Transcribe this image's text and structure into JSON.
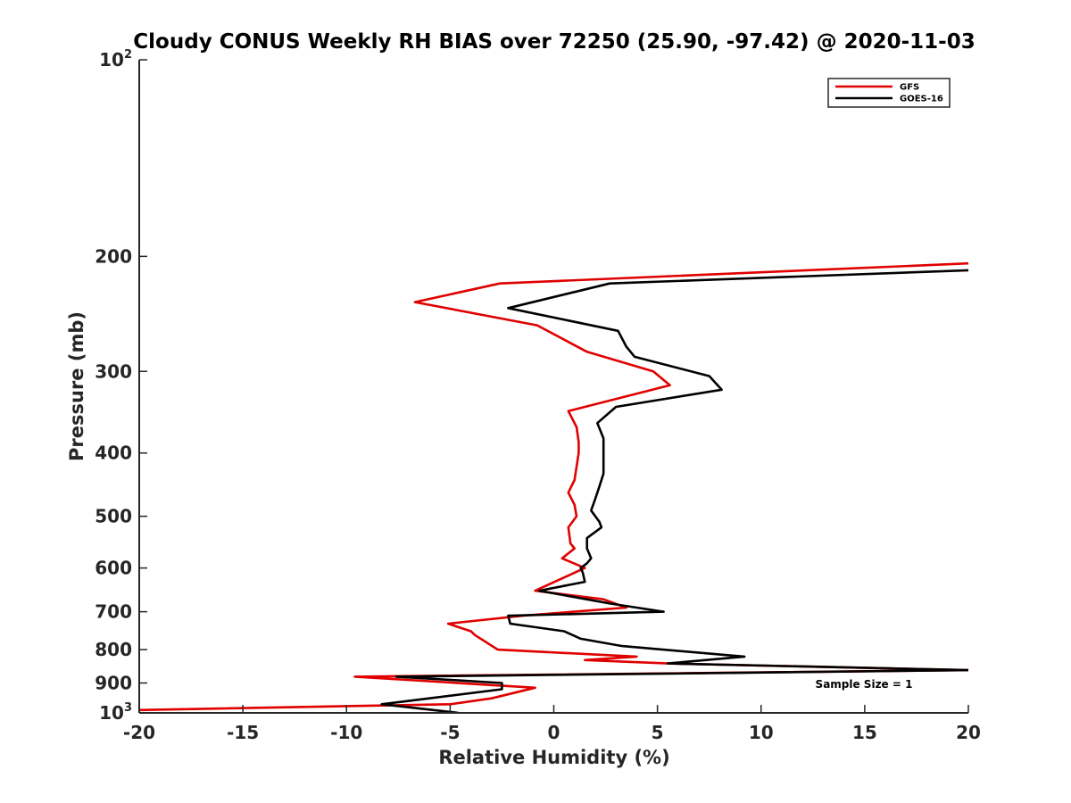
{
  "chart_data": {
    "type": "line",
    "title": "Cloudy CONUS Weekly RH BIAS over 72250 (25.90, -97.42) @ 2020-11-03",
    "xlabel": "Relative Humidity (%)",
    "ylabel": "Pressure (mb)",
    "xlim": [
      -20,
      20
    ],
    "ylim": [
      100,
      1000
    ],
    "y_scale": "log",
    "y_reversed": true,
    "x_ticks": [
      -20,
      -15,
      -10,
      -5,
      0,
      5,
      10,
      15,
      20
    ],
    "x_tick_labels": [
      "-20",
      "-15",
      "-10",
      "-5",
      "0",
      "5",
      "10",
      "15",
      "20"
    ],
    "y_ticks": [
      100,
      200,
      300,
      400,
      500,
      600,
      700,
      800,
      900,
      1000
    ],
    "y_tick_labels": [
      {
        "base": "10",
        "sup": "2"
      },
      {
        "base": "200",
        "sup": ""
      },
      {
        "base": "300",
        "sup": ""
      },
      {
        "base": "400",
        "sup": ""
      },
      {
        "base": "500",
        "sup": ""
      },
      {
        "base": "600",
        "sup": ""
      },
      {
        "base": "700",
        "sup": ""
      },
      {
        "base": "800",
        "sup": ""
      },
      {
        "base": "900",
        "sup": ""
      },
      {
        "base": "10",
        "sup": "3"
      }
    ],
    "grid": false,
    "legend_position": "top-right",
    "annotation": "Sample Size = 1",
    "series": [
      {
        "name": "GFS",
        "color": "#e00000",
        "x": [
          20,
          -2.6,
          -6.7,
          -0.8,
          1.6,
          4.8,
          5.6,
          0.7,
          1.1,
          1.2,
          1.2,
          1.1,
          1.0,
          0.7,
          1.0,
          1.1,
          0.7,
          0.8,
          1.0,
          0.4,
          1.5,
          -0.9,
          2.4,
          3.5,
          -1.5,
          -5.1,
          -4.0,
          -3.8,
          -2.7,
          4.0,
          1.5,
          5.5,
          20,
          -9.6,
          -0.9,
          -3.0,
          -5.0,
          -20
        ],
        "y": [
          205,
          220,
          235,
          255,
          280,
          300,
          315,
          345,
          365,
          385,
          400,
          420,
          440,
          460,
          480,
          500,
          520,
          550,
          560,
          580,
          600,
          650,
          670,
          690,
          710,
          730,
          750,
          760,
          800,
          820,
          830,
          840,
          860,
          880,
          915,
          950,
          970,
          990
        ]
      },
      {
        "name": "GOES-16",
        "color": "#000000",
        "x": [
          20,
          2.7,
          -2.2,
          3.1,
          3.5,
          3.9,
          7.5,
          8.1,
          3.0,
          2.1,
          2.4,
          2.4,
          2.4,
          2.2,
          2.0,
          1.8,
          2.2,
          2.3,
          1.6,
          1.6,
          1.8,
          1.6,
          1.3,
          1.4,
          1.5,
          -0.7,
          2.7,
          5.3,
          -2.2,
          -2.1,
          0.5,
          1.3,
          3.3,
          9.2,
          5.5,
          20,
          -7.6,
          -2.5,
          -2.5,
          -6.0,
          -8.3,
          -4.6
        ],
        "y": [
          210,
          220,
          240,
          260,
          275,
          285,
          305,
          320,
          340,
          360,
          380,
          400,
          430,
          450,
          470,
          490,
          510,
          520,
          540,
          560,
          580,
          590,
          600,
          610,
          630,
          650,
          680,
          700,
          710,
          730,
          750,
          770,
          790,
          820,
          840,
          860,
          880,
          900,
          920,
          950,
          970,
          1000
        ]
      }
    ]
  }
}
